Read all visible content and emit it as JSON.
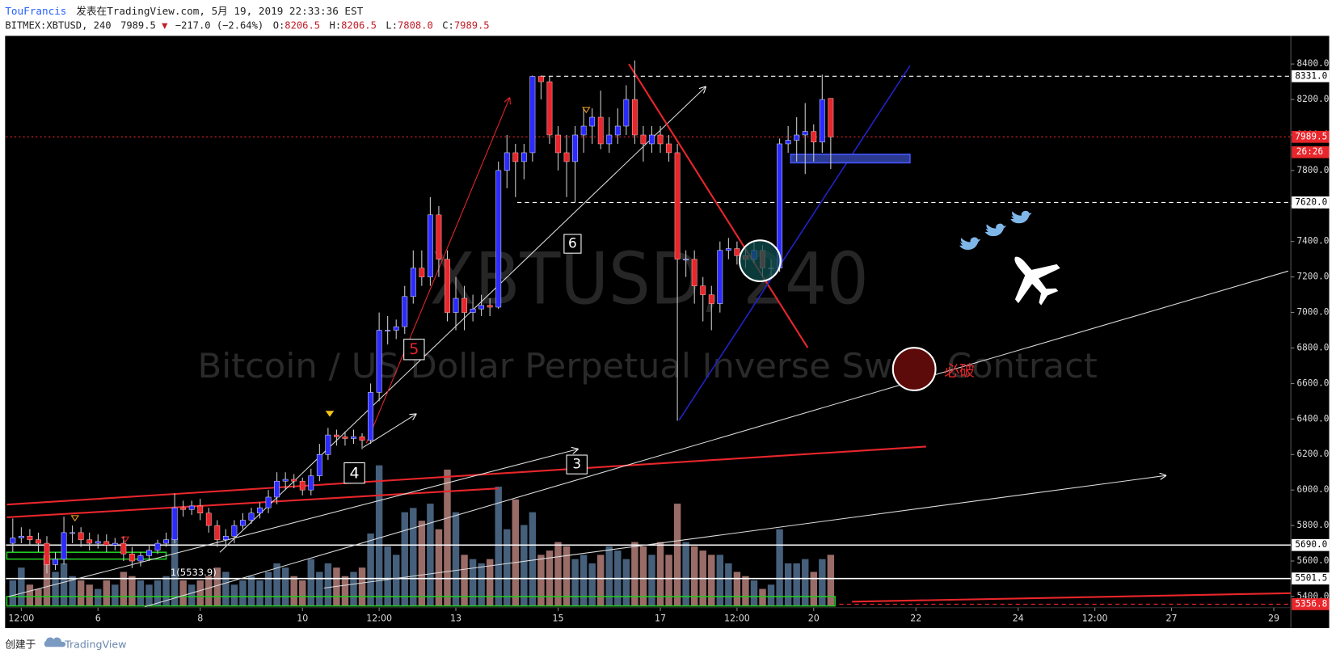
{
  "header": {
    "author": "TouFrancis",
    "published": "发表在TradingView.com, 5月 19, 2019 22:33:36 EST",
    "symbol": "BITMEX:XBTUSD, 240",
    "last": "7989.5",
    "arrow": "▼",
    "change": "−217.0 (−2.64%)",
    "ohlc": [
      {
        "label": "O:",
        "value": "8206.5"
      },
      {
        "label": "H:",
        "value": "8206.5"
      },
      {
        "label": "L:",
        "value": "7808.0"
      },
      {
        "label": "C:",
        "value": "7989.5"
      }
    ]
  },
  "chart_data": {
    "type": "candlestick",
    "watermark": "XBTUSD, 240",
    "subtitle": "Bitcoin / US Dollar Perpetual Inverse Swap Contract",
    "x": [
      0,
      1,
      2,
      3,
      4,
      5,
      6,
      7,
      8,
      9,
      10,
      11,
      12,
      13,
      14,
      15,
      16,
      17,
      18,
      19,
      20,
      21,
      22,
      23,
      24,
      25,
      26,
      27,
      28,
      29,
      30,
      31,
      32,
      33,
      34,
      35,
      36,
      37,
      38,
      39,
      40,
      41,
      42,
      43,
      44,
      45,
      46,
      47,
      48,
      49,
      50,
      51,
      52,
      53,
      54,
      55,
      56,
      57,
      58,
      59,
      60,
      61,
      62,
      63,
      64,
      65,
      66,
      67,
      68,
      69,
      70,
      71,
      72,
      73,
      74,
      75,
      76,
      77,
      78,
      79,
      80,
      81,
      82,
      83,
      84,
      85,
      86,
      87,
      88,
      89,
      90,
      91,
      92,
      93,
      94,
      95,
      96
    ],
    "open": [
      5700,
      5730,
      5740,
      5720,
      5700,
      5580,
      5610,
      5760,
      5760,
      5720,
      5700,
      5710,
      5690,
      5700,
      5640,
      5600,
      5630,
      5660,
      5700,
      5720,
      5900,
      5890,
      5910,
      5870,
      5800,
      5720,
      5740,
      5800,
      5830,
      5870,
      5900,
      5960,
      6050,
      6060,
      6050,
      6000,
      6080,
      6200,
      6310,
      6300,
      6290,
      6300,
      6280,
      6550,
      6900,
      6900,
      6920,
      7090,
      7250,
      7200,
      7550,
      7300,
      7000,
      7080,
      7000,
      7020,
      7040,
      7030,
      7800,
      7900,
      7850,
      7900,
      8330,
      8300,
      8000,
      7900,
      7850,
      8000,
      8050,
      8100,
      7950,
      8000,
      8050,
      8200,
      8000,
      7950,
      8000,
      7950,
      7900,
      7300,
      7300,
      7150,
      7100,
      7050,
      7350,
      7360,
      7320,
      7300,
      7350,
      7250,
      7250,
      7950,
      7970,
      8000,
      8020,
      7960,
      8206.5
    ],
    "high": [
      5840,
      5790,
      5780,
      5760,
      5740,
      5650,
      5850,
      5800,
      5790,
      5760,
      5750,
      5750,
      5730,
      5740,
      5680,
      5650,
      5690,
      5720,
      5760,
      5980,
      5940,
      5940,
      5950,
      5900,
      5830,
      5780,
      5830,
      5870,
      5900,
      5930,
      6000,
      6100,
      6100,
      6090,
      6070,
      6120,
      6260,
      6350,
      6340,
      6330,
      6340,
      6320,
      6600,
      7000,
      6980,
      6960,
      7150,
      7350,
      7350,
      7650,
      7600,
      7350,
      7200,
      7150,
      7100,
      7100,
      7080,
      7850,
      8000,
      7950,
      7950,
      8335,
      8335,
      8330,
      8050,
      8000,
      8050,
      8150,
      8150,
      8250,
      8100,
      8150,
      8280,
      8420,
      8050,
      8050,
      8050,
      8000,
      7950,
      7350,
      7350,
      7200,
      7150,
      7400,
      7420,
      7400,
      7360,
      7400,
      7380,
      7300,
      7980,
      8050,
      8100,
      8180,
      8060,
      8340,
      8206.5
    ],
    "low": [
      5650,
      5700,
      5690,
      5650,
      5530,
      5550,
      5580,
      5700,
      5680,
      5660,
      5670,
      5650,
      5660,
      5600,
      5560,
      5570,
      5600,
      5640,
      5680,
      5700,
      5850,
      5860,
      5830,
      5760,
      5680,
      5680,
      5700,
      5780,
      5810,
      5840,
      5870,
      5920,
      6000,
      6010,
      5970,
      5970,
      6050,
      6170,
      6250,
      6250,
      6260,
      6230,
      6260,
      6500,
      6820,
      6850,
      6880,
      7050,
      7150,
      7150,
      7200,
      6950,
      6900,
      6900,
      6950,
      6980,
      6980,
      7020,
      7700,
      7650,
      7750,
      7850,
      8200,
      7950,
      7800,
      7650,
      7620,
      7900,
      7950,
      7920,
      7900,
      7950,
      8000,
      7950,
      7850,
      7900,
      7900,
      7850,
      6390,
      7200,
      7050,
      6950,
      6900,
      7000,
      7300,
      7270,
      7250,
      7280,
      7200,
      7200,
      7230,
      7900,
      7850,
      7780,
      7850,
      7900,
      7808
    ],
    "close": [
      5730,
      5740,
      5720,
      5700,
      5580,
      5610,
      5760,
      5760,
      5720,
      5700,
      5710,
      5690,
      5700,
      5640,
      5600,
      5630,
      5660,
      5700,
      5720,
      5900,
      5890,
      5910,
      5870,
      5800,
      5720,
      5740,
      5800,
      5830,
      5870,
      5900,
      5960,
      6050,
      6060,
      6050,
      6000,
      6080,
      6200,
      6310,
      6300,
      6290,
      6300,
      6280,
      6550,
      6900,
      6900,
      6920,
      7090,
      7250,
      7200,
      7550,
      7300,
      7000,
      7080,
      7000,
      7020,
      7040,
      7030,
      7800,
      7900,
      7850,
      7900,
      8330,
      8300,
      8000,
      7900,
      7850,
      8000,
      8050,
      8100,
      7950,
      8000,
      8050,
      8200,
      8000,
      7950,
      8000,
      7950,
      7900,
      7300,
      7300,
      7150,
      7100,
      7050,
      7350,
      7360,
      7320,
      7300,
      7350,
      7250,
      7250,
      7950,
      7970,
      8000,
      8020,
      7960,
      8200,
      7989.5
    ],
    "volume": [
      30,
      45,
      25,
      20,
      60,
      40,
      50,
      35,
      30,
      25,
      20,
      30,
      25,
      40,
      35,
      30,
      25,
      30,
      35,
      80,
      30,
      25,
      30,
      35,
      45,
      40,
      25,
      30,
      35,
      30,
      40,
      50,
      45,
      35,
      30,
      55,
      40,
      50,
      45,
      35,
      40,
      45,
      85,
      165,
      70,
      60,
      110,
      115,
      100,
      120,
      90,
      160,
      110,
      60,
      55,
      50,
      55,
      140,
      90,
      125,
      95,
      110,
      60,
      65,
      75,
      70,
      55,
      60,
      50,
      60,
      70,
      65,
      55,
      75,
      70,
      60,
      75,
      60,
      120,
      75,
      70,
      65,
      60,
      60,
      50,
      40,
      35,
      30,
      20,
      25,
      90,
      50,
      50,
      55,
      40,
      55,
      60
    ],
    "up_color": "#2b2bff",
    "down_color": "#e8262b",
    "volume_up_color": "#46607c",
    "volume_down_color": "#9a6c68",
    "xlim": [
      -0.7,
      150
    ],
    "xticks": [
      {
        "value": 1,
        "label": "12:00"
      },
      {
        "value": 10,
        "label": "6"
      },
      {
        "value": 22,
        "label": "8"
      },
      {
        "value": 34,
        "label": "10"
      },
      {
        "value": 43,
        "label": "12:00"
      },
      {
        "value": 52,
        "label": "13"
      },
      {
        "value": 64,
        "label": "15"
      },
      {
        "value": 76,
        "label": "17"
      },
      {
        "value": 85,
        "label": "12:00"
      },
      {
        "value": 94,
        "label": "20"
      },
      {
        "value": 106,
        "label": "22"
      },
      {
        "value": 118,
        "label": "24"
      },
      {
        "value": 127,
        "label": "12:00"
      },
      {
        "value": 136,
        "label": "27"
      },
      {
        "value": 148,
        "label": "29"
      }
    ],
    "ylim": [
      5222,
      8424
    ],
    "yticks": [
      {
        "value": 5400,
        "label": "5400.0"
      },
      {
        "value": 5600,
        "label": "5600.0"
      },
      {
        "value": 5800,
        "label": "5800.0"
      },
      {
        "value": 6000,
        "label": "6000.0"
      },
      {
        "value": 6200,
        "label": "6200.0"
      },
      {
        "value": 6400,
        "label": "6400.0"
      },
      {
        "value": 6600,
        "label": "6600.0"
      },
      {
        "value": 6800,
        "label": "6800.0"
      },
      {
        "value": 7000,
        "label": "7000.0"
      },
      {
        "value": 7200,
        "label": "7200.0"
      },
      {
        "value": 7400,
        "label": "7400.0"
      },
      {
        "value": 7600,
        "label": "7600.0"
      },
      {
        "value": 7800,
        "label": "7800.0"
      },
      {
        "value": 8000,
        "label": "8000.0"
      },
      {
        "value": 8200,
        "label": "8200.0"
      },
      {
        "value": 8400,
        "label": "8400.0"
      }
    ],
    "levels": [
      {
        "value": 8331,
        "label": "8331.0",
        "color": "#ffffff",
        "style": "dashed"
      },
      {
        "value": 7989.5,
        "color": "#e8262b",
        "style": "dotted"
      },
      {
        "value": 7620,
        "label": "7620.0",
        "color": "#ffffff",
        "style": "dashed"
      },
      {
        "value": 5690,
        "label": "5690.0",
        "color": "#ffffff",
        "style": "solid"
      },
      {
        "value": 5501.5,
        "color": "#ffffff",
        "style": "solid"
      },
      {
        "value": 5356.8,
        "color": "#e8262b",
        "style": "dashed"
      }
    ],
    "countdown": "26:26",
    "annotations": [
      "5",
      "6",
      "4",
      "3",
      "必破",
      "1(5533.9)"
    ]
  },
  "footer": {
    "created": "创建于",
    "brand": "TradingView"
  }
}
